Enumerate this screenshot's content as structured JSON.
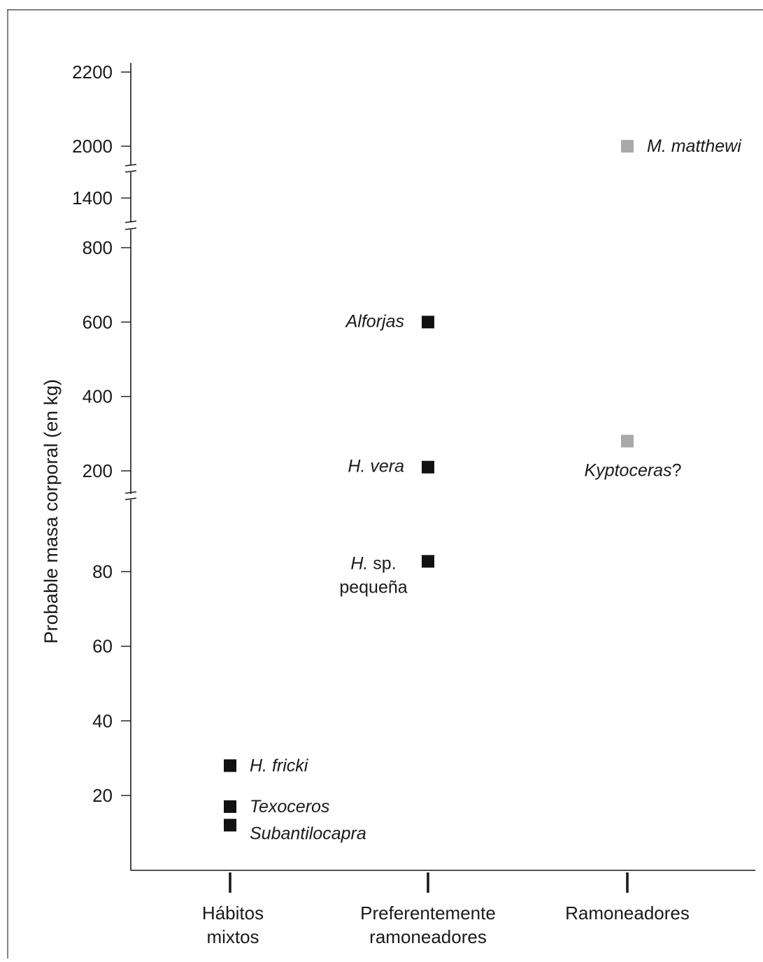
{
  "colors": {
    "ink": "#1a1a1a",
    "marker_dark": "#111111",
    "marker_gray": "#a9a9a9"
  },
  "chart_data": {
    "type": "scatter",
    "title": "",
    "ylabel": "Probable masa corporal (en kg)",
    "xlabel": "",
    "y_scale": "broken",
    "y_segments": [
      {
        "range": [
          0,
          110
        ],
        "ticks": [
          20,
          40,
          60,
          80
        ]
      },
      {
        "range": [
          100,
          900
        ],
        "ticks": [
          200,
          400,
          600,
          800
        ]
      },
      {
        "range": [
          1300,
          1500
        ],
        "ticks": [
          1400
        ]
      },
      {
        "range": [
          1950,
          2250
        ],
        "ticks": [
          2000,
          2200
        ]
      }
    ],
    "categories": [
      {
        "label_lines": [
          "Hábitos",
          "mixtos"
        ]
      },
      {
        "label_lines": [
          "Preferentemente",
          "ramoneadores"
        ]
      },
      {
        "label_lines": [
          "Ramoneadores"
        ]
      }
    ],
    "points": [
      {
        "category": 0,
        "y": 28,
        "label_parts": [
          {
            "t": "H. fricki",
            "i": true
          }
        ],
        "label_pos": "right",
        "color": "dark"
      },
      {
        "category": 0,
        "y": 17,
        "label_parts": [
          {
            "t": "Texoceros",
            "i": true
          }
        ],
        "label_pos": "right",
        "color": "dark"
      },
      {
        "category": 0,
        "y": 12,
        "label_parts": [
          {
            "t": "Subantilocapra",
            "i": true
          }
        ],
        "label_pos": "right-below",
        "color": "dark"
      },
      {
        "category": 1,
        "y": 600,
        "label_parts": [
          {
            "t": "Alforjas",
            "i": true
          }
        ],
        "label_pos": "left",
        "color": "dark"
      },
      {
        "category": 1,
        "y": 210,
        "label_parts": [
          {
            "t": "H. vera",
            "i": true
          }
        ],
        "label_pos": "left",
        "color": "dark"
      },
      {
        "category": 1,
        "y": 84,
        "label_lines": [
          [
            {
              "t": "H.",
              "i": true
            },
            {
              "t": " sp.",
              "i": false
            }
          ],
          [
            {
              "t": "pequeña",
              "i": false
            }
          ]
        ],
        "label_pos": "left",
        "color": "dark"
      },
      {
        "category": 2,
        "y": 2000,
        "label_parts": [
          {
            "t": "M. matthewi",
            "i": true
          }
        ],
        "label_pos": "right",
        "color": "gray"
      },
      {
        "category": 2,
        "y": 280,
        "label_parts": [
          {
            "t": "Kyptoceras",
            "i": true
          },
          {
            "t": "?",
            "i": false
          }
        ],
        "label_pos": "below",
        "color": "gray"
      }
    ]
  }
}
